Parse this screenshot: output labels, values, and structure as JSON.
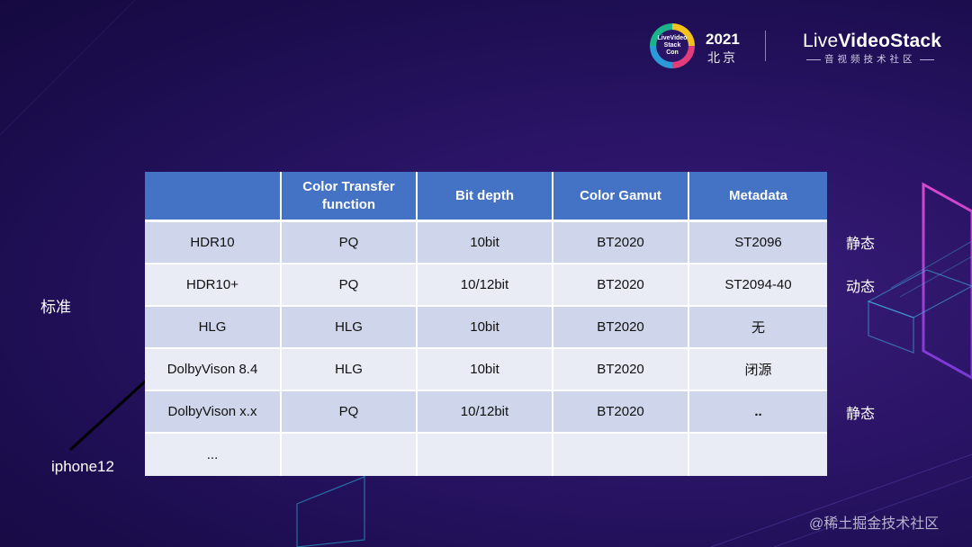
{
  "header": {
    "badge_lines": [
      "LiveVideo",
      "Stack",
      "Con"
    ],
    "year": "2021",
    "city": "北京",
    "brand_prefix": "Live",
    "brand_main": "VideoStack",
    "brand_sub": "音视频技术社区"
  },
  "table": {
    "columns": [
      "",
      "Color Transfer function",
      "Bit depth",
      "Color Gamut",
      "Metadata"
    ],
    "rows": [
      [
        "HDR10",
        "PQ",
        "10bit",
        "BT2020",
        "ST2096"
      ],
      [
        "HDR10+",
        "PQ",
        "10/12bit",
        "BT2020",
        "ST2094-40"
      ],
      [
        "HLG",
        "HLG",
        "10bit",
        "BT2020",
        "无"
      ],
      [
        "DolbyVison 8.4",
        "HLG",
        "10bit",
        "BT2020",
        "闭源"
      ],
      [
        "DolbyVison x.x",
        "PQ",
        "10/12bit",
        "BT2020",
        ".."
      ],
      [
        "...",
        "",
        "",
        "",
        ""
      ]
    ]
  },
  "annotations": {
    "row1_side": "静态",
    "row2_side": "动态",
    "row5_side": "静态",
    "left_label": "标准",
    "arrow_label": "iphone12"
  },
  "watermark": "@稀土掘金技术社区",
  "colors": {
    "header_fill": "#4472c4",
    "row_dark": "#cfd5ea",
    "row_light": "#e9ebf5",
    "accent_pink": "#e040c0",
    "accent_cyan": "#35b7e0"
  }
}
